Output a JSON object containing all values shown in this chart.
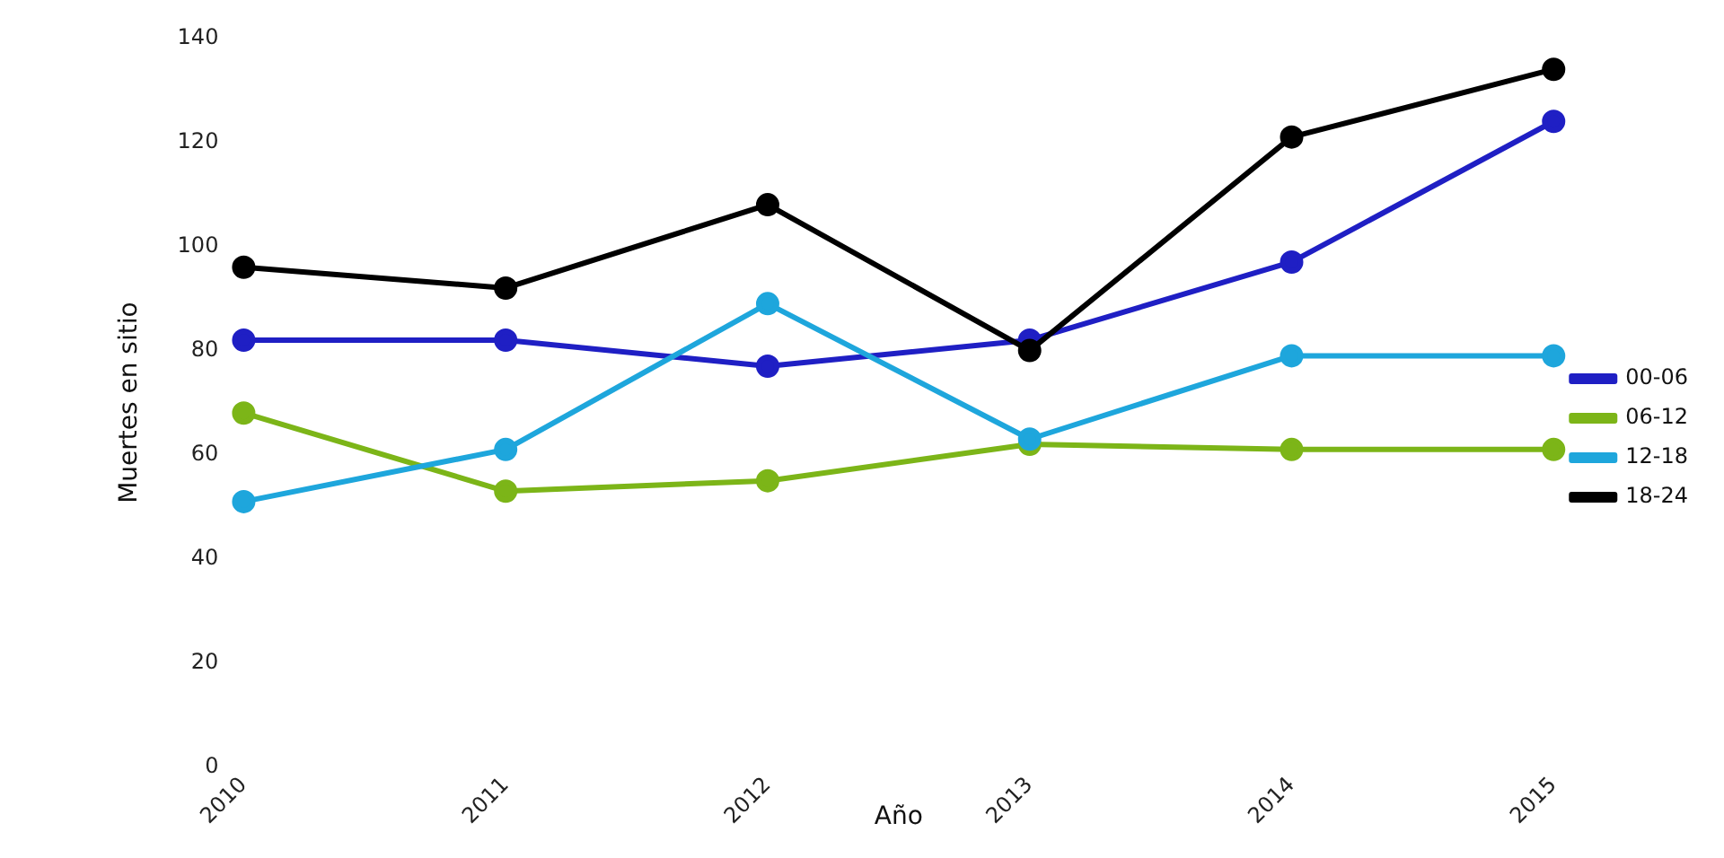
{
  "chart_data": {
    "type": "line",
    "xlabel": "Año",
    "ylabel": "Muertes en sitio",
    "categories": [
      "2010",
      "2011",
      "2012",
      "2013",
      "2014",
      "2015"
    ],
    "series": [
      {
        "name": "00-06",
        "color": "#1f1fc4",
        "values": [
          82,
          82,
          77,
          82,
          97,
          124
        ]
      },
      {
        "name": "06-12",
        "color": "#7cb518",
        "values": [
          68,
          53,
          55,
          62,
          61,
          61
        ]
      },
      {
        "name": "12-18",
        "color": "#1ea6dc",
        "values": [
          51,
          61,
          89,
          63,
          79,
          79
        ]
      },
      {
        "name": "18-24",
        "color": "#000000",
        "values": [
          96,
          92,
          108,
          80,
          121,
          134
        ]
      }
    ],
    "ylim": [
      0,
      140
    ],
    "yticks": [
      0,
      20,
      40,
      60,
      80,
      100,
      120,
      140
    ],
    "grid": false,
    "legend": "right",
    "marker": "circle",
    "line_style": "solid"
  }
}
